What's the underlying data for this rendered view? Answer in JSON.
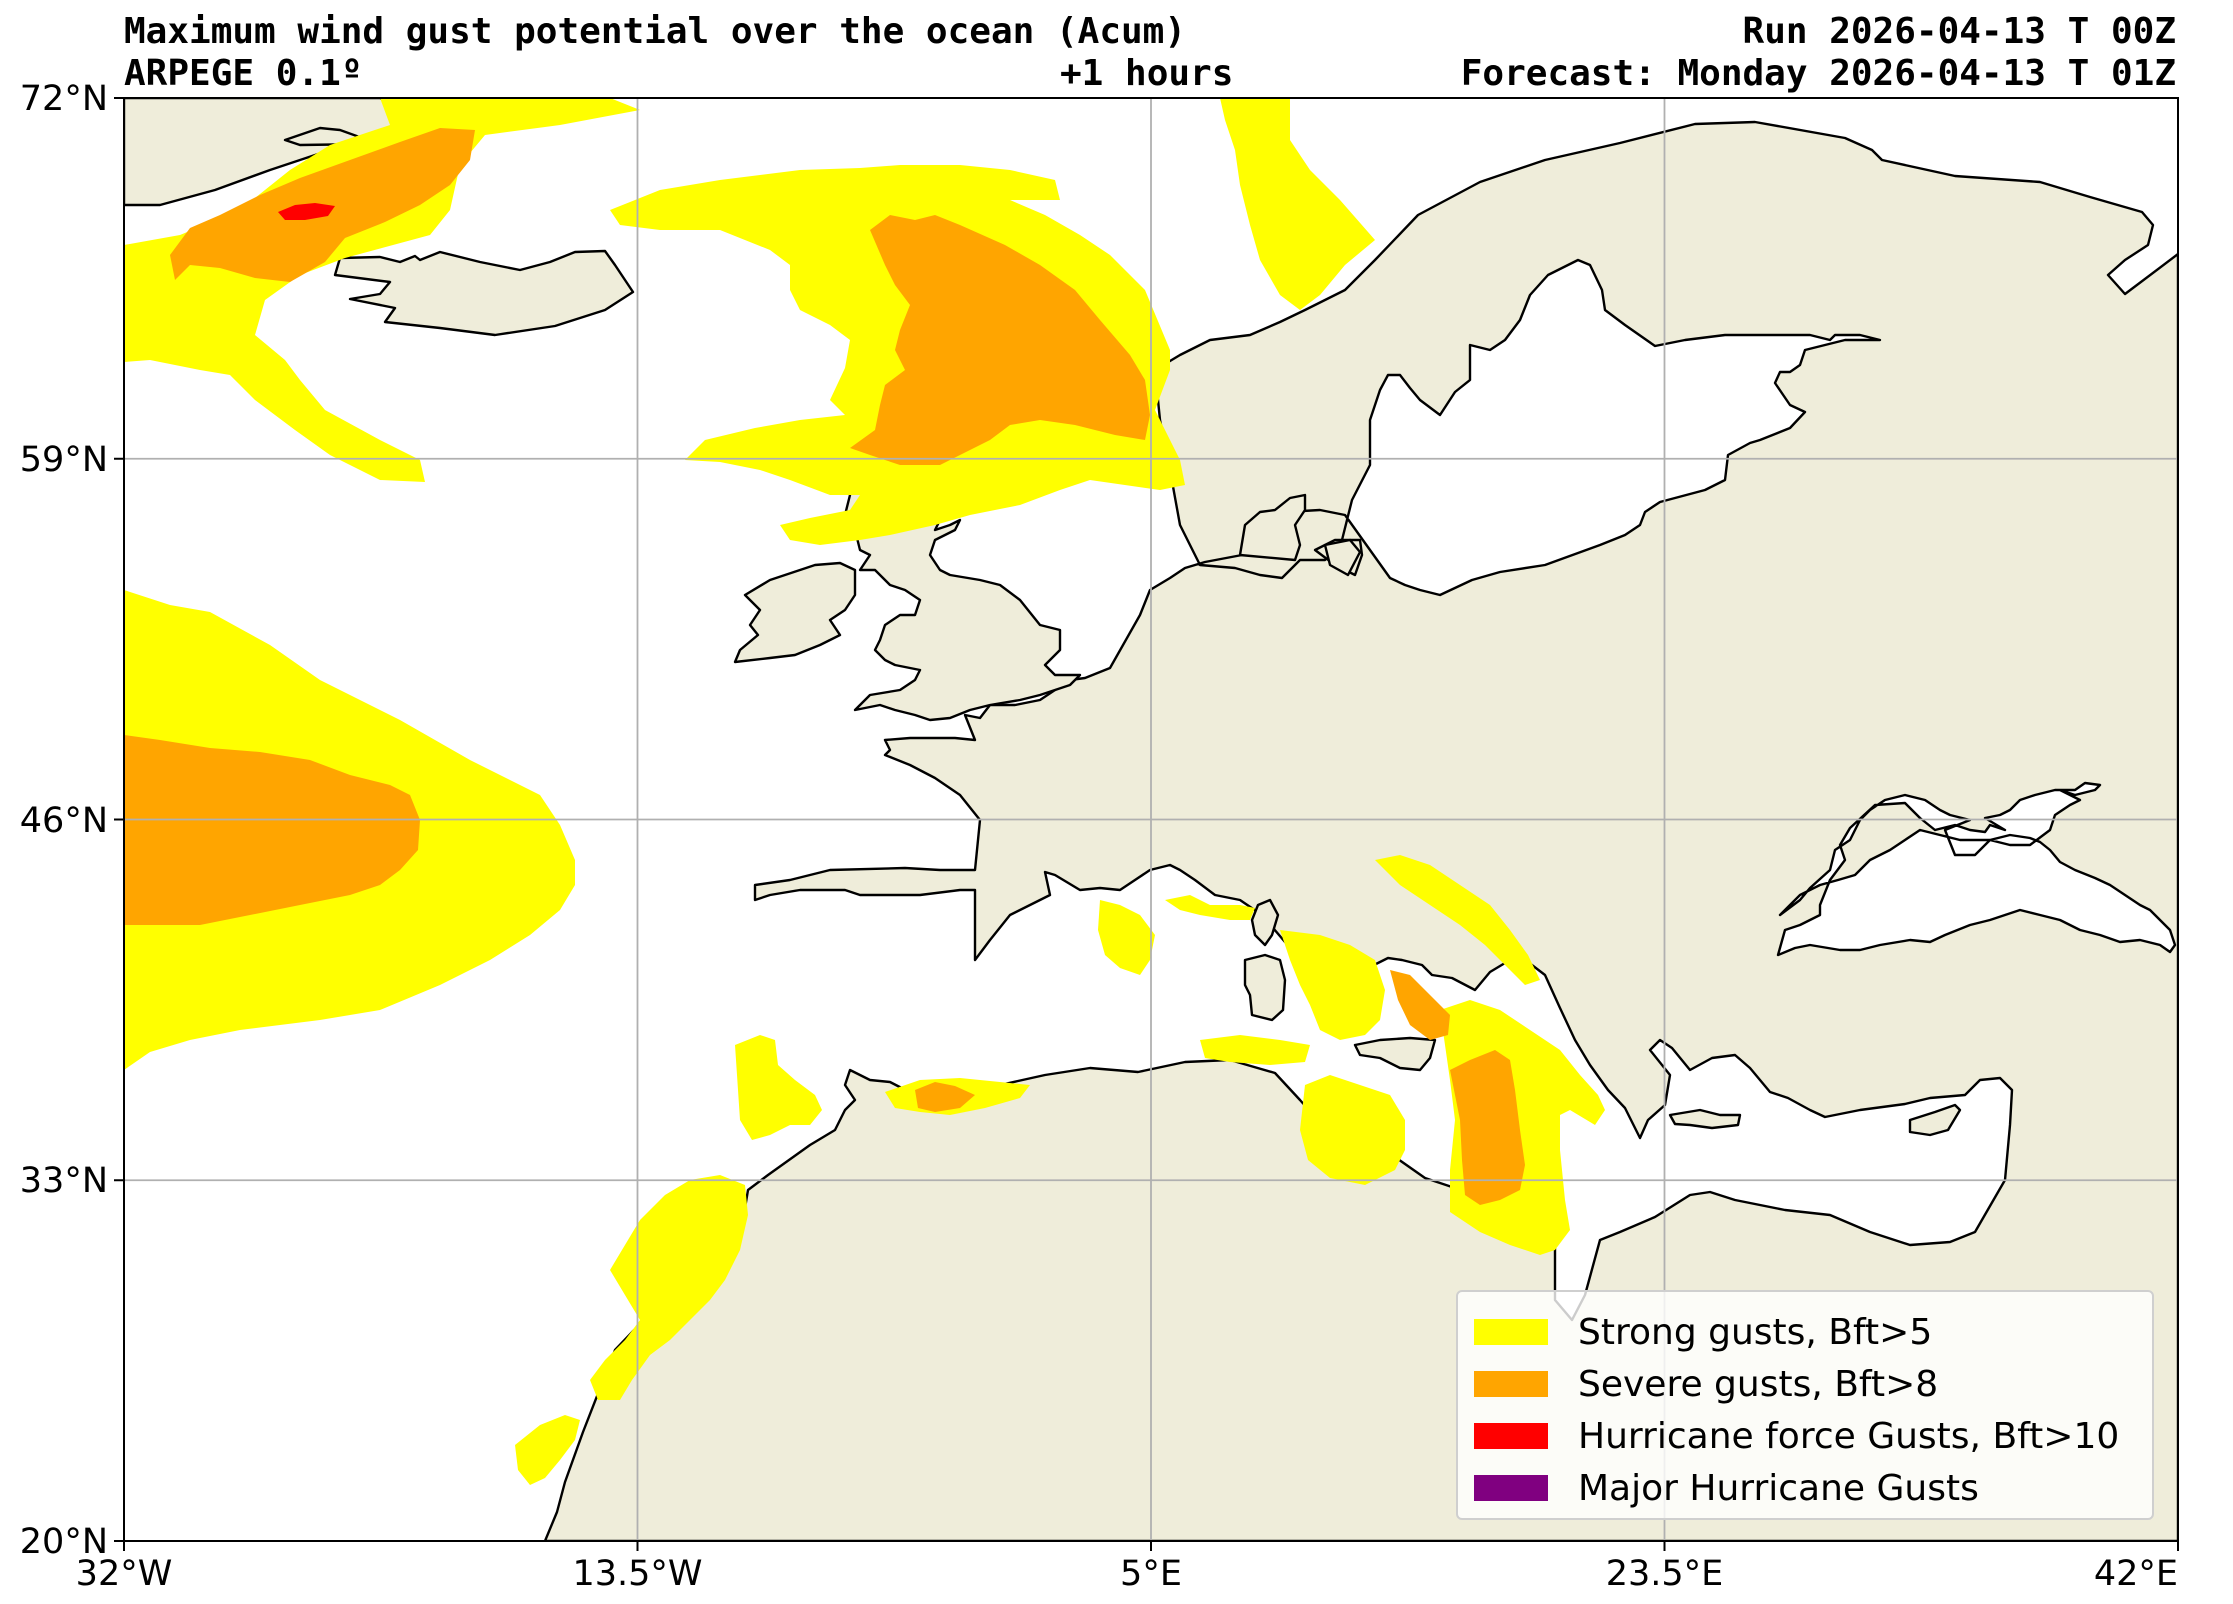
{
  "title": {
    "left_line1": "Maximum wind gust potential over the ocean (Acum)",
    "left_line2": "ARPEGE 0.1º",
    "center_line2": "+1 hours",
    "right_line1": "Run 2026-04-13 T 00Z",
    "right_line2": "Forecast: Monday 2026-04-13 T 01Z"
  },
  "axes": {
    "lon_range": [
      -32,
      42
    ],
    "lat_range": [
      20,
      72
    ],
    "lat_ticks": [
      "72°N",
      "59°N",
      "46°N",
      "33°N",
      "20°N"
    ],
    "lon_ticks": [
      "32°W",
      "13.5°W",
      "5°E",
      "23.5°E",
      "42°E"
    ],
    "grid": true
  },
  "legend": {
    "placement": "bottom-right",
    "items": [
      {
        "label": "Strong gusts, Bft>5",
        "color": "#ffff00"
      },
      {
        "label": "Severe gusts, Bft>8",
        "color": "#ffa500"
      },
      {
        "label": "Hurricane force Gusts, Bft>10",
        "color": "#ff0000"
      },
      {
        "label": "Major Hurricane Gusts",
        "color": "#800080"
      }
    ]
  },
  "colors": {
    "land": "#efedda",
    "ocean": "#ffffff",
    "strong": "#ffff00",
    "severe": "#ffa500",
    "hurricane": "#ff0000",
    "coastline": "#000000",
    "grid": "#b0b0b0"
  }
}
